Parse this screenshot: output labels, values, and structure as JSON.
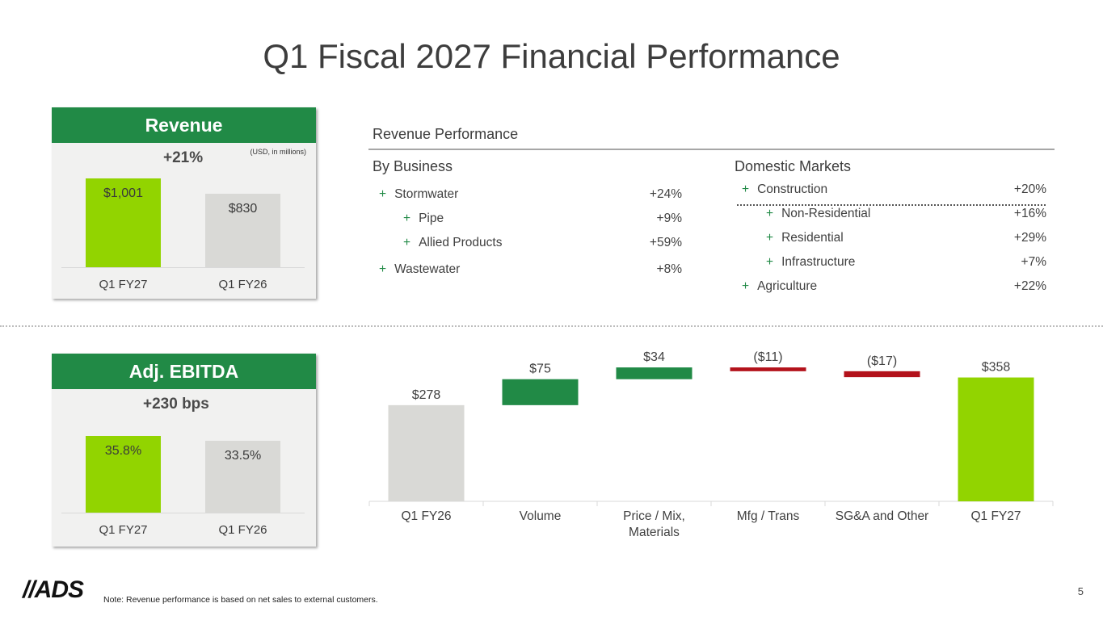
{
  "title": "Q1 Fiscal 2027 Financial Performance",
  "revenue_panel": {
    "header": "Revenue",
    "change": "+21%",
    "units": "(USD, in millions)",
    "bars": [
      {
        "category": "Q1 FY27",
        "value": 1001,
        "label": "$1,001",
        "color": "#92d400"
      },
      {
        "category": "Q1 FY26",
        "value": 830,
        "label": "$830",
        "color": "#d9d9d6"
      }
    ]
  },
  "ebitda_panel": {
    "header": "Adj. EBITDA",
    "change": "+230 bps",
    "bars": [
      {
        "category": "Q1 FY27",
        "value": 35.8,
        "label": "35.8%",
        "color": "#92d400"
      },
      {
        "category": "Q1 FY26",
        "value": 33.5,
        "label": "33.5%",
        "color": "#d9d9d6"
      }
    ]
  },
  "revenue_performance": {
    "title": "Revenue Performance",
    "by_business": {
      "heading": "By Business",
      "rows": [
        {
          "label": "Stormwater",
          "value": "+24%",
          "indent": 0
        },
        {
          "label": "Pipe",
          "value": "+9%",
          "indent": 1
        },
        {
          "label": "Allied Products",
          "value": "+59%",
          "indent": 1
        },
        {
          "label": "Wastewater",
          "value": "+8%",
          "indent": 0
        }
      ]
    },
    "domestic_markets": {
      "heading": "Domestic Markets",
      "rows": [
        {
          "label": "Construction",
          "value": "+20%",
          "indent": 0
        },
        {
          "label": "Non-Residential",
          "value": "+16%",
          "indent": 1
        },
        {
          "label": "Residential",
          "value": "+29%",
          "indent": 1
        },
        {
          "label": "Infrastructure",
          "value": "+7%",
          "indent": 1
        },
        {
          "label": "Agriculture",
          "value": "+22%",
          "indent": 0
        }
      ]
    },
    "plus_symbol": "+"
  },
  "chart_data": [
    {
      "type": "bar",
      "title": "Revenue",
      "categories": [
        "Q1 FY27",
        "Q1 FY26"
      ],
      "values": [
        1001,
        830
      ],
      "data_labels": [
        "$1,001",
        "$830"
      ],
      "annotation": "+21%"
    },
    {
      "type": "bar",
      "title": "Adj. EBITDA",
      "categories": [
        "Q1 FY27",
        "Q1 FY26"
      ],
      "values": [
        35.8,
        33.5
      ],
      "data_labels": [
        "35.8%",
        "33.5%"
      ],
      "annotation": "+230 bps"
    },
    {
      "type": "bar",
      "subtype": "waterfall",
      "categories": [
        "Q1 FY26",
        "Volume",
        "Price / Mix, Materials",
        "Mfg / Trans",
        "SG&A and Other",
        "Q1 FY27"
      ],
      "values": [
        278,
        75,
        34,
        -11,
        -17,
        358
      ],
      "data_labels": [
        "$278",
        "$75",
        "$34",
        "($11)",
        "($17)",
        "$358"
      ],
      "kinds": [
        "total",
        "delta",
        "delta",
        "delta",
        "delta",
        "total"
      ],
      "colors": {
        "start": "#d9d9d6",
        "increase": "#218a46",
        "decrease": "#b3121b",
        "end": "#92d400"
      },
      "ylim": [
        0,
        420
      ]
    }
  ],
  "footer": {
    "logo": "//ADS",
    "note": "Note: Revenue performance is based on net sales to external customers.",
    "page_number": "5"
  }
}
